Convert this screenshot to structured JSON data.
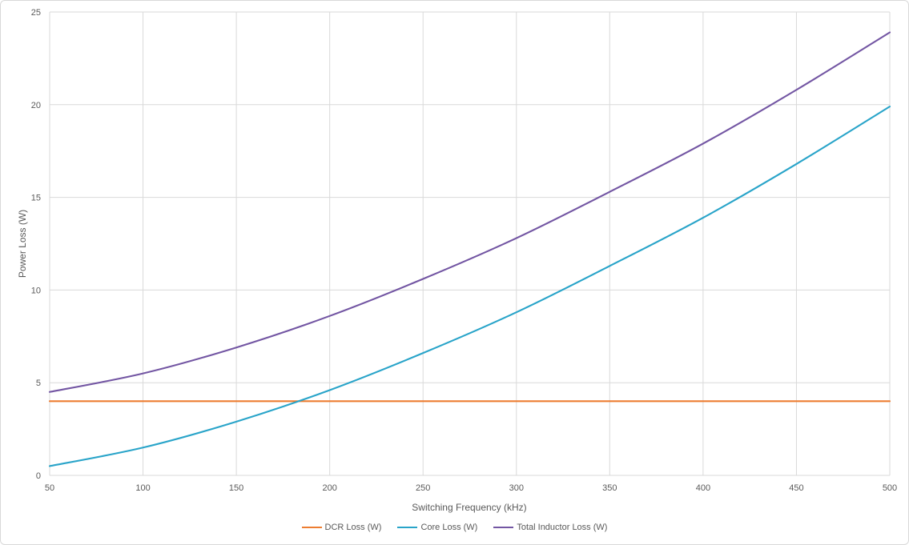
{
  "chart_data": {
    "type": "line",
    "title": "",
    "xlabel": "Switching Frequency (kHz)",
    "ylabel": "Power Loss (W)",
    "x": [
      50,
      100,
      150,
      200,
      250,
      300,
      350,
      400,
      450,
      500
    ],
    "series": [
      {
        "name": "DCR Loss (W)",
        "color": "#ED7D31",
        "values": [
          4.0,
          4.0,
          4.0,
          4.0,
          4.0,
          4.0,
          4.0,
          4.0,
          4.0,
          4.0
        ]
      },
      {
        "name": "Core Loss (W)",
        "color": "#29A4C9",
        "values": [
          0.5,
          1.5,
          2.9,
          4.6,
          6.6,
          8.8,
          11.3,
          13.9,
          16.8,
          19.9
        ]
      },
      {
        "name": "Total Inductor Loss (W)",
        "color": "#7356A3",
        "values": [
          4.5,
          5.5,
          6.9,
          8.6,
          10.6,
          12.8,
          15.3,
          17.9,
          20.8,
          23.9
        ]
      }
    ],
    "xlim": [
      50,
      500
    ],
    "ylim": [
      0,
      25
    ],
    "x_ticks": [
      50,
      100,
      150,
      200,
      250,
      300,
      350,
      400,
      450,
      500
    ],
    "y_ticks": [
      0,
      5,
      10,
      15,
      20,
      25
    ],
    "grid": true,
    "legend_position": "bottom",
    "colors": {
      "gridline": "#D9D9D9",
      "axis_text": "#595959",
      "frame_border": "#D9D9D9",
      "background": "#FFFFFF"
    }
  }
}
